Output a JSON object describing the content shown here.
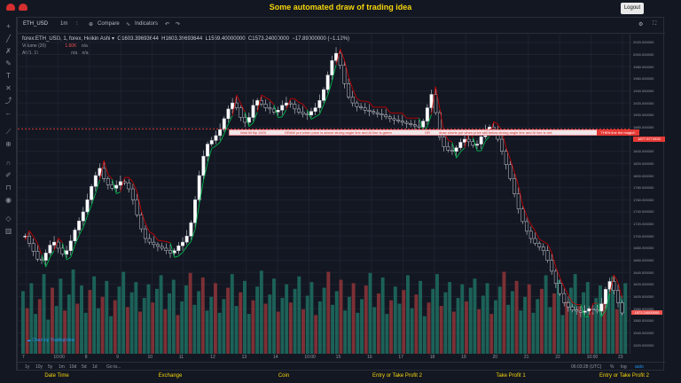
{
  "app": {
    "title": "Some automated draw of trading idea",
    "logout_label": "Logout"
  },
  "toolbar": {
    "symbol": "ETH_USD",
    "interval": "1m",
    "compare_label": "Compare",
    "indicators_label": "Indicators"
  },
  "legend": {
    "title": "forex:ETH_USD, 1, forex, Heikin Ashi",
    "open": "O1603.39693644",
    "high": "H1603.39693644",
    "low": "L1569.40000000",
    "close": "C1573.24000000",
    "change": "−17.89000000 (−1.12%)",
    "volume_label": "Volume (20)",
    "volume_value": "1.60K",
    "na1": "n/a",
    "indicator_label": "AI (1, 1)",
    "na2": "n/a",
    "na3": "n/a"
  },
  "price_axis": {
    "ticks": [
      "2020.000000",
      "2000.000000",
      "1980.000000",
      "1960.000000",
      "1940.000000",
      "1920.000000",
      "1900.000000",
      "1880.000000",
      "1860.000000",
      "1840.000000",
      "1820.000000",
      "1800.000000",
      "1780.000000",
      "1760.000000",
      "1740.000000",
      "1720.000000",
      "1700.000000",
      "1680.000000",
      "1660.000000",
      "1640.000000",
      "1620.000000",
      "1600.000000",
      "1580.000000",
      "1560.000000",
      "1540.000000",
      "1520.000000"
    ],
    "current_price": "1573.24000000"
  },
  "time_axis": {
    "ticks": [
      "7",
      "10:00",
      "8",
      "9",
      "10",
      "11",
      "12",
      "13",
      "14",
      "10:00",
      "15",
      "16",
      "17",
      "18",
      "19",
      "20",
      "21",
      "22",
      "10:00",
      "23"
    ]
  },
  "annotations": {
    "text1": "Wait till flip 1920",
    "text2": "DRAW put when price is above strong angle line and AI line is green",
    "text3": "OR",
    "text4": "draw shorts put when price still below strong angle line and AI line is red",
    "text5": "THEN line the magic!!",
    "price_tag": "1877.5774925"
  },
  "bottom_bar": {
    "ranges": [
      "1y",
      "10y",
      "5y",
      "1m",
      "10d",
      "5d",
      "1d"
    ],
    "goto_label": "Go to...",
    "time": "06:03:28 (UTC)",
    "percent": "%",
    "log": "log",
    "auto": "auto"
  },
  "watermark": "Chart by TradingView",
  "columns": [
    "Date Time",
    "Exchange",
    "Coin",
    "Entry or Take Profit 2",
    "Take Profit 1",
    "Entry or Take Profit 2"
  ],
  "colors": {
    "accent": "#f5d50a",
    "up": "#26a69a",
    "down": "#ef5350",
    "signal_green": "#00c853",
    "signal_red": "#d50000"
  },
  "chart_data": {
    "type": "candlestick",
    "style": "Heikin Ashi",
    "symbol": "ETH_USD",
    "ylim": [
      1510,
      2030
    ],
    "grid": true,
    "close_series": [
      1700,
      1688,
      1675,
      1662,
      1660,
      1672,
      1685,
      1690,
      1680,
      1670,
      1676,
      1692,
      1710,
      1725,
      1740,
      1760,
      1782,
      1800,
      1812,
      1795,
      1785,
      1779,
      1784,
      1790,
      1788,
      1778,
      1760,
      1735,
      1712,
      1696,
      1690,
      1686,
      1683,
      1680,
      1676,
      1672,
      1676,
      1684,
      1690,
      1700,
      1722,
      1760,
      1800,
      1832,
      1852,
      1858,
      1866,
      1876,
      1894,
      1910,
      1920,
      1912,
      1896,
      1888,
      1896,
      1916,
      1924,
      1918,
      1912,
      1910,
      1905,
      1908,
      1916,
      1920,
      1918,
      1910,
      1905,
      1902,
      1900,
      1906,
      1912,
      1924,
      1942,
      1966,
      1990,
      2002,
      1982,
      1952,
      1930,
      1920,
      1914,
      1912,
      1908,
      1906,
      1904,
      1902,
      1900,
      1897,
      1894,
      1892,
      1890,
      1888,
      1886,
      1884,
      1882,
      1880,
      1890,
      1912,
      1934,
      1904,
      1864,
      1848,
      1842,
      1840,
      1846,
      1855,
      1860,
      1856,
      1850,
      1852,
      1864,
      1874,
      1880,
      1874,
      1860,
      1840,
      1818,
      1795,
      1770,
      1745,
      1724,
      1708,
      1696,
      1688,
      1682,
      1676,
      1660,
      1642,
      1622,
      1605,
      1590,
      1583,
      1578,
      1576,
      1574,
      1576,
      1580,
      1578,
      1576,
      1588,
      1612,
      1625,
      1610,
      1590,
      1573
    ],
    "volume_series": [
      55,
      40,
      62,
      35,
      48,
      70,
      30,
      58,
      42,
      66,
      38,
      52,
      74,
      44,
      60,
      36,
      56,
      68,
      40,
      50,
      64,
      33,
      47,
      59,
      72,
      41,
      54,
      63,
      37,
      49,
      61,
      45,
      57,
      69,
      39,
      53,
      65,
      34,
      46,
      60,
      71,
      43,
      55,
      67,
      38,
      50,
      62,
      36,
      48,
      58,
      70,
      42,
      54,
      64,
      35,
      47,
      59,
      73,
      44,
      52,
      66,
      37,
      49,
      61,
      45,
      57,
      68,
      39,
      51,
      63,
      34,
      46,
      58,
      72,
      43,
      55,
      65,
      38,
      50,
      62,
      36,
      48,
      60,
      71,
      41,
      53,
      67,
      35,
      47,
      59,
      44,
      56,
      69,
      40,
      52,
      64,
      33,
      45,
      57,
      70,
      42,
      54,
      63,
      37,
      49,
      61,
      46,
      58,
      66,
      39,
      51,
      62,
      35,
      47,
      59,
      72,
      43,
      55,
      64,
      38,
      50,
      61,
      36,
      48,
      57,
      69,
      41,
      53,
      65,
      34,
      46,
      58,
      70,
      42,
      54,
      63,
      37,
      49,
      60,
      45,
      56,
      68,
      39,
      51,
      62
    ]
  }
}
